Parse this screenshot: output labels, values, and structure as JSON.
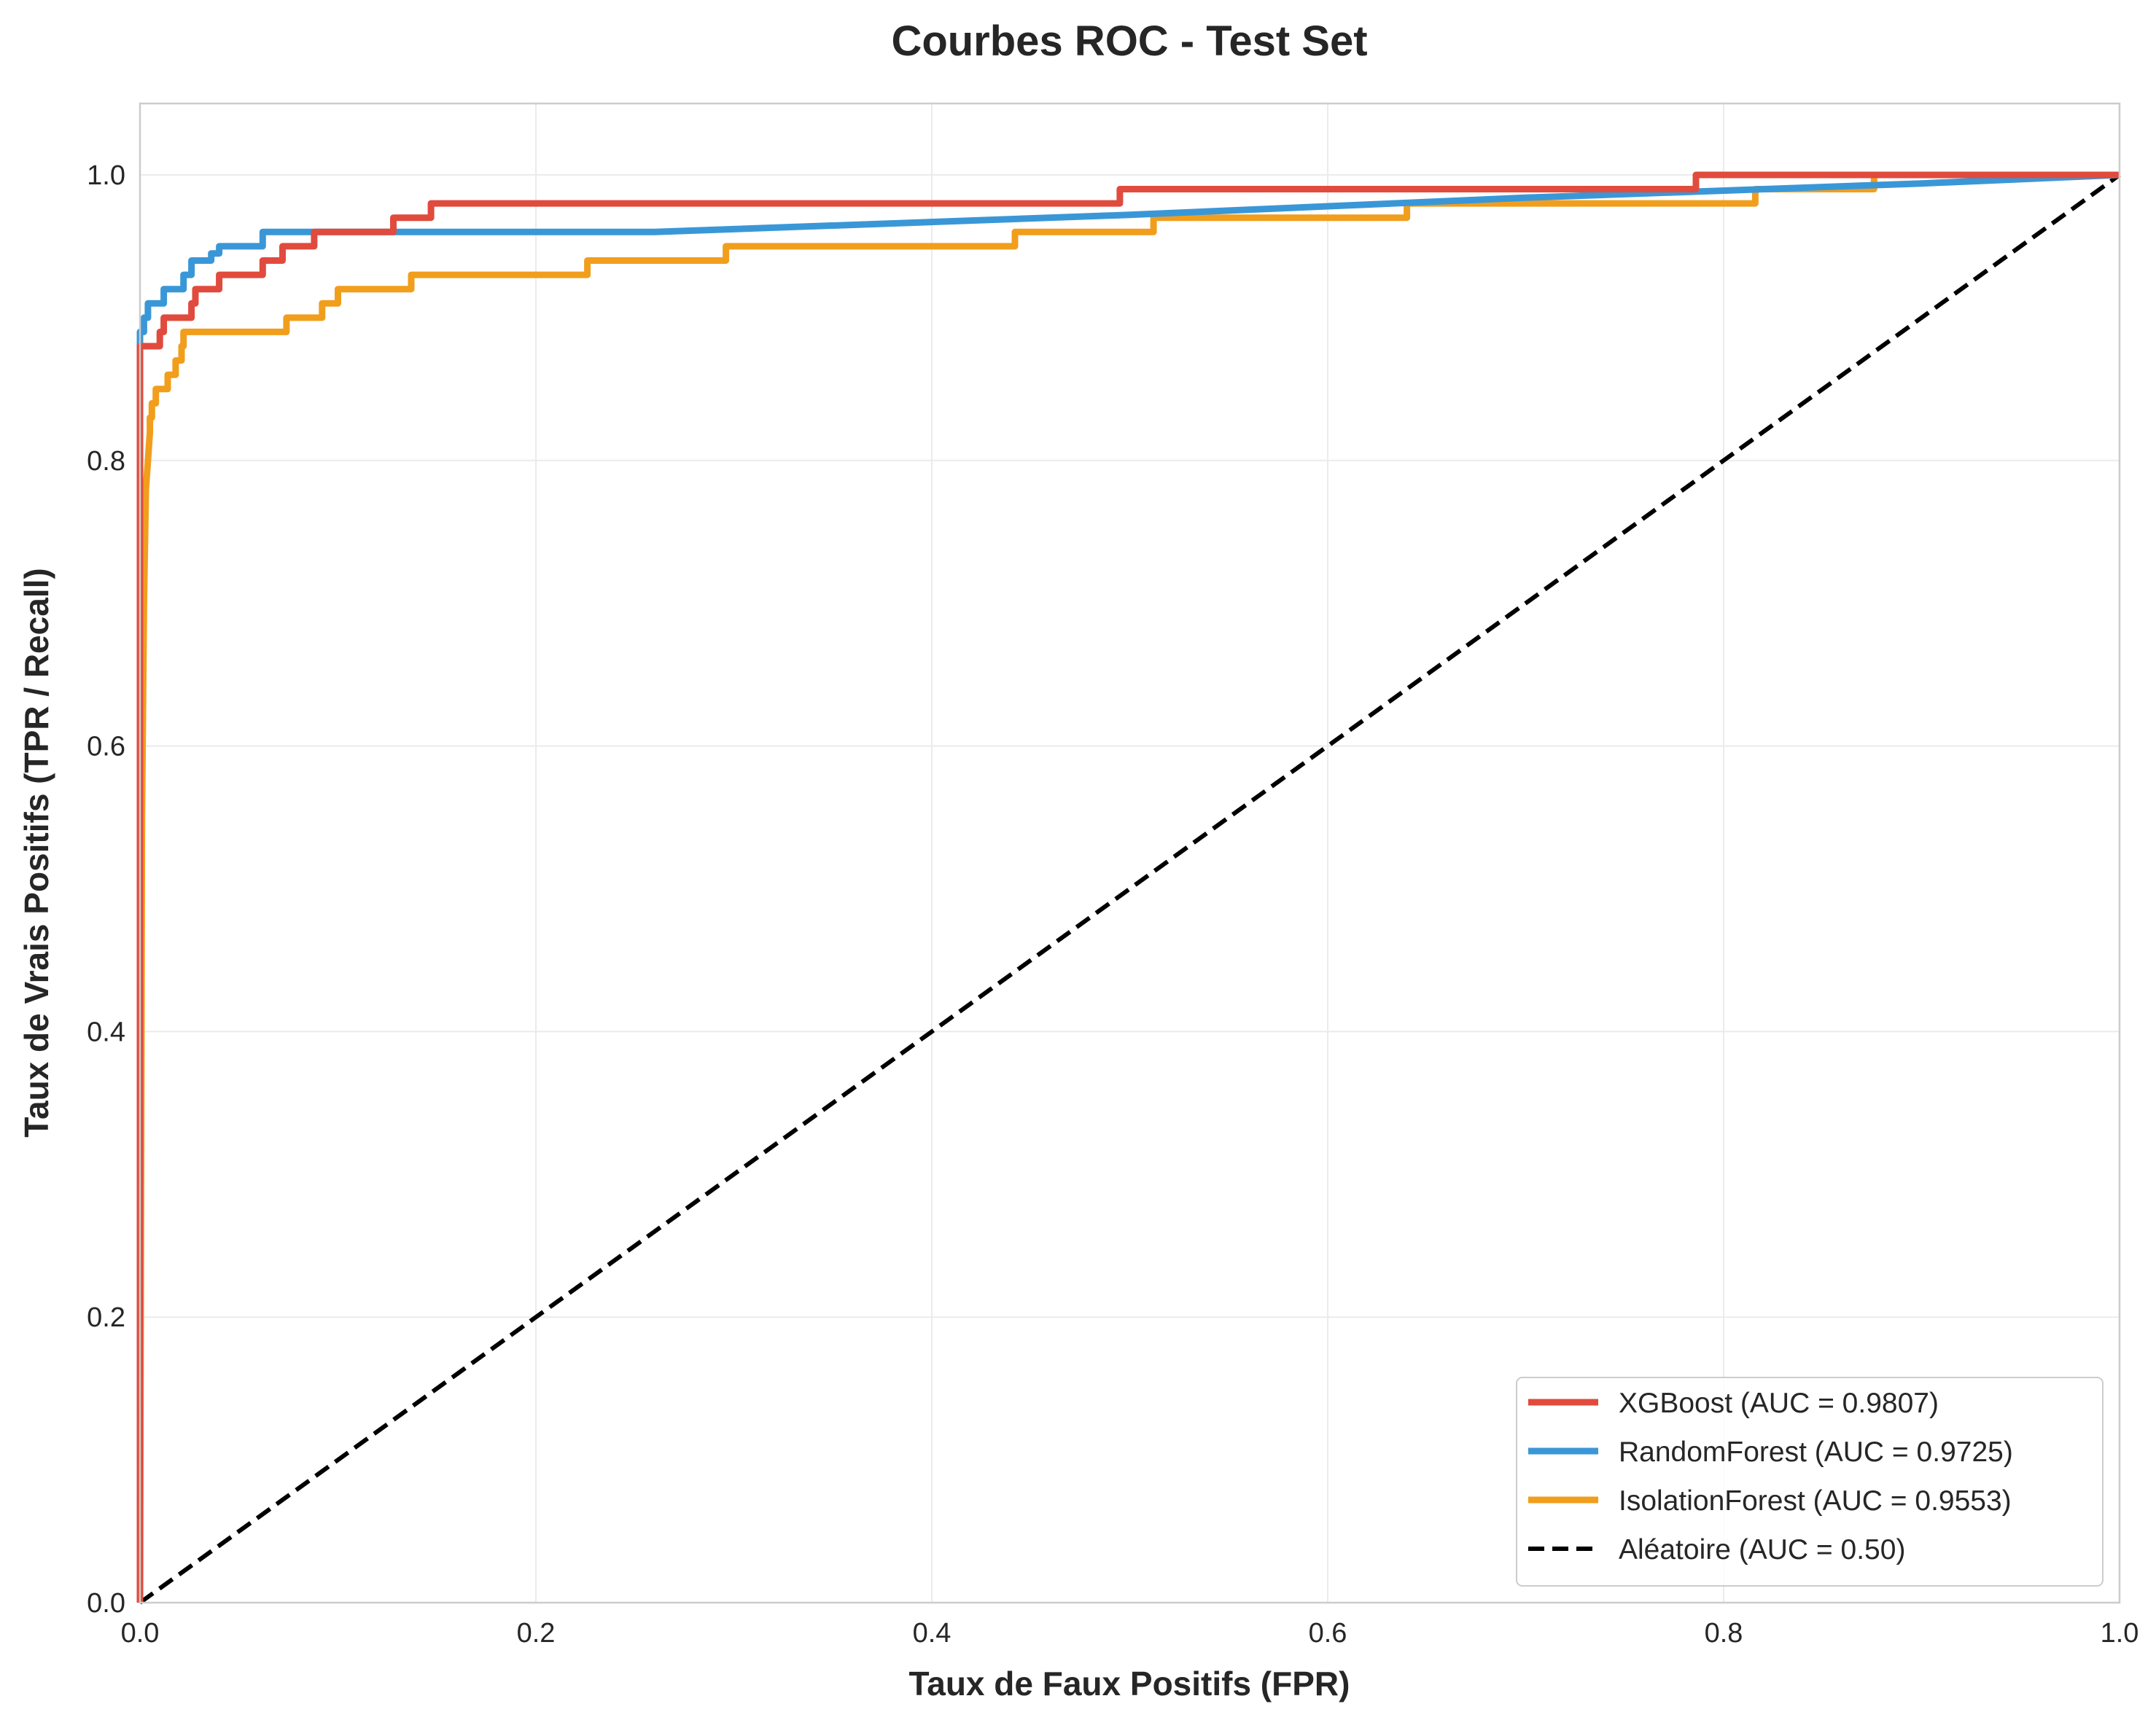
{
  "chart_data": {
    "type": "line",
    "title": "Courbes ROC - Test Set",
    "xlabel": "Taux de Faux Positifs (FPR)",
    "ylabel": "Taux de Vrais Positifs (TPR / Recall)",
    "xlim": [
      0,
      1
    ],
    "ylim": [
      0,
      1.05
    ],
    "x_ticks": [
      "0.0",
      "0.2",
      "0.4",
      "0.6",
      "0.8",
      "1.0"
    ],
    "y_ticks": [
      "0.0",
      "0.2",
      "0.4",
      "0.6",
      "0.8",
      "1.0"
    ],
    "x_tick_values": [
      0,
      0.2,
      0.4,
      0.6,
      0.8,
      1.0
    ],
    "y_tick_values": [
      0,
      0.2,
      0.4,
      0.6,
      0.8,
      1.0
    ],
    "grid": true,
    "legend_position": "lower-right",
    "series": [
      {
        "name": "XGBoost (AUC = 0.9807)",
        "color": "#e04b3d",
        "style": "solid",
        "points": [
          [
            0,
            0
          ],
          [
            0,
            0.88
          ],
          [
            0.01,
            0.88
          ],
          [
            0.01,
            0.89
          ],
          [
            0.012,
            0.89
          ],
          [
            0.012,
            0.9
          ],
          [
            0.026,
            0.9
          ],
          [
            0.026,
            0.91
          ],
          [
            0.028,
            0.91
          ],
          [
            0.028,
            0.92
          ],
          [
            0.04,
            0.92
          ],
          [
            0.04,
            0.93
          ],
          [
            0.062,
            0.93
          ],
          [
            0.062,
            0.94
          ],
          [
            0.072,
            0.94
          ],
          [
            0.072,
            0.95
          ],
          [
            0.088,
            0.95
          ],
          [
            0.088,
            0.96
          ],
          [
            0.128,
            0.96
          ],
          [
            0.128,
            0.97
          ],
          [
            0.147,
            0.97
          ],
          [
            0.147,
            0.98
          ],
          [
            0.495,
            0.98
          ],
          [
            0.495,
            0.99
          ],
          [
            0.786,
            0.99
          ],
          [
            0.786,
            1.0
          ],
          [
            1.0,
            1.0
          ]
        ]
      },
      {
        "name": "RandomForest (AUC = 0.9725)",
        "color": "#3a97d7",
        "style": "solid",
        "points": [
          [
            0,
            0
          ],
          [
            0,
            0.89
          ],
          [
            0.002,
            0.89
          ],
          [
            0.002,
            0.9
          ],
          [
            0.004,
            0.9
          ],
          [
            0.004,
            0.91
          ],
          [
            0.012,
            0.91
          ],
          [
            0.012,
            0.92
          ],
          [
            0.022,
            0.92
          ],
          [
            0.022,
            0.93
          ],
          [
            0.026,
            0.93
          ],
          [
            0.026,
            0.94
          ],
          [
            0.036,
            0.94
          ],
          [
            0.036,
            0.945
          ],
          [
            0.04,
            0.945
          ],
          [
            0.04,
            0.95
          ],
          [
            0.062,
            0.95
          ],
          [
            0.062,
            0.96
          ],
          [
            0.26,
            0.96
          ],
          [
            0.5,
            0.972
          ],
          [
            0.7,
            0.984
          ],
          [
            0.9,
            0.994
          ],
          [
            1.0,
            1.0
          ]
        ]
      },
      {
        "name": "IsolationForest (AUC = 0.9553)",
        "color": "#f19e1d",
        "style": "solid",
        "points": [
          [
            0,
            0
          ],
          [
            0.001,
            0.55
          ],
          [
            0.002,
            0.7
          ],
          [
            0.003,
            0.78
          ],
          [
            0.004,
            0.8
          ],
          [
            0.005,
            0.82
          ],
          [
            0.005,
            0.83
          ],
          [
            0.006,
            0.83
          ],
          [
            0.006,
            0.84
          ],
          [
            0.008,
            0.84
          ],
          [
            0.008,
            0.85
          ],
          [
            0.014,
            0.85
          ],
          [
            0.014,
            0.86
          ],
          [
            0.018,
            0.86
          ],
          [
            0.018,
            0.87
          ],
          [
            0.021,
            0.87
          ],
          [
            0.021,
            0.88
          ],
          [
            0.022,
            0.88
          ],
          [
            0.022,
            0.89
          ],
          [
            0.074,
            0.89
          ],
          [
            0.074,
            0.9
          ],
          [
            0.092,
            0.9
          ],
          [
            0.092,
            0.91
          ],
          [
            0.1,
            0.91
          ],
          [
            0.1,
            0.92
          ],
          [
            0.137,
            0.92
          ],
          [
            0.137,
            0.93
          ],
          [
            0.226,
            0.93
          ],
          [
            0.226,
            0.94
          ],
          [
            0.296,
            0.94
          ],
          [
            0.296,
            0.95
          ],
          [
            0.442,
            0.95
          ],
          [
            0.442,
            0.96
          ],
          [
            0.512,
            0.96
          ],
          [
            0.512,
            0.97
          ],
          [
            0.64,
            0.97
          ],
          [
            0.64,
            0.98
          ],
          [
            0.816,
            0.98
          ],
          [
            0.816,
            0.99
          ],
          [
            0.876,
            0.99
          ],
          [
            0.876,
            1.0
          ],
          [
            1.0,
            1.0
          ]
        ]
      },
      {
        "name": "Aléatoire (AUC = 0.50)",
        "color": "#000000",
        "style": "dashed",
        "points": [
          [
            0,
            0
          ],
          [
            1,
            1
          ]
        ]
      }
    ]
  }
}
